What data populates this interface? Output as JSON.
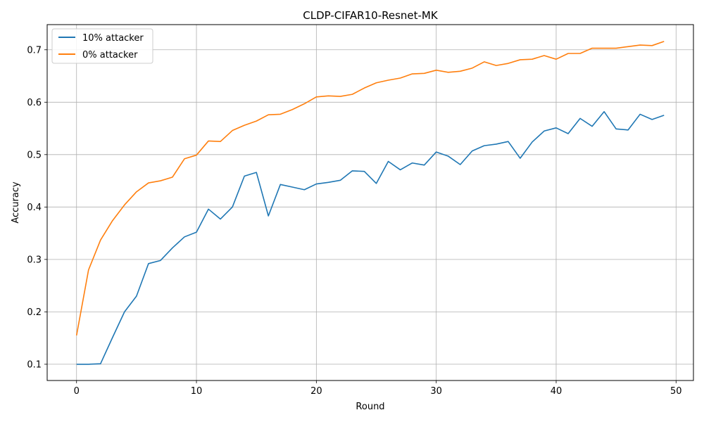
{
  "chart_data": {
    "type": "line",
    "title": "CLDP-CIFAR10-Resnet-MK",
    "xlabel": "Round",
    "ylabel": "Accuracy",
    "xlim": [
      -2.45,
      51.45
    ],
    "ylim": [
      0.069,
      0.748
    ],
    "xticks": [
      0,
      10,
      20,
      30,
      40,
      50
    ],
    "yticks": [
      0.1,
      0.2,
      0.3,
      0.4,
      0.5,
      0.6,
      0.7
    ],
    "grid": true,
    "legend_position": "upper-left",
    "x": [
      0,
      1,
      2,
      3,
      4,
      5,
      6,
      7,
      8,
      9,
      10,
      11,
      12,
      13,
      14,
      15,
      16,
      17,
      18,
      19,
      20,
      21,
      22,
      23,
      24,
      25,
      26,
      27,
      28,
      29,
      30,
      31,
      32,
      33,
      34,
      35,
      36,
      37,
      38,
      39,
      40,
      41,
      42,
      43,
      44,
      45,
      46,
      47,
      48,
      49
    ],
    "series": [
      {
        "name": "10% attacker",
        "color": "#1f77b4",
        "values": [
          0.1,
          0.1,
          0.101,
          0.151,
          0.2,
          0.23,
          0.292,
          0.298,
          0.322,
          0.343,
          0.352,
          0.396,
          0.377,
          0.4,
          0.459,
          0.466,
          0.383,
          0.443,
          0.438,
          0.433,
          0.444,
          0.447,
          0.451,
          0.469,
          0.468,
          0.445,
          0.487,
          0.471,
          0.484,
          0.48,
          0.505,
          0.497,
          0.481,
          0.507,
          0.517,
          0.52,
          0.525,
          0.493,
          0.524,
          0.545,
          0.551,
          0.54,
          0.569,
          0.554,
          0.582,
          0.549,
          0.547,
          0.577,
          0.567,
          0.575
        ]
      },
      {
        "name": "0% attacker",
        "color": "#ff7f0e",
        "values": [
          0.155,
          0.28,
          0.337,
          0.374,
          0.404,
          0.429,
          0.446,
          0.45,
          0.457,
          0.492,
          0.499,
          0.526,
          0.525,
          0.546,
          0.556,
          0.564,
          0.576,
          0.577,
          0.586,
          0.597,
          0.61,
          0.612,
          0.611,
          0.615,
          0.627,
          0.637,
          0.642,
          0.646,
          0.654,
          0.655,
          0.661,
          0.657,
          0.659,
          0.665,
          0.677,
          0.67,
          0.674,
          0.681,
          0.682,
          0.689,
          0.682,
          0.693,
          0.693,
          0.703,
          0.703,
          0.703,
          0.706,
          0.709,
          0.708,
          0.716
        ]
      }
    ]
  }
}
